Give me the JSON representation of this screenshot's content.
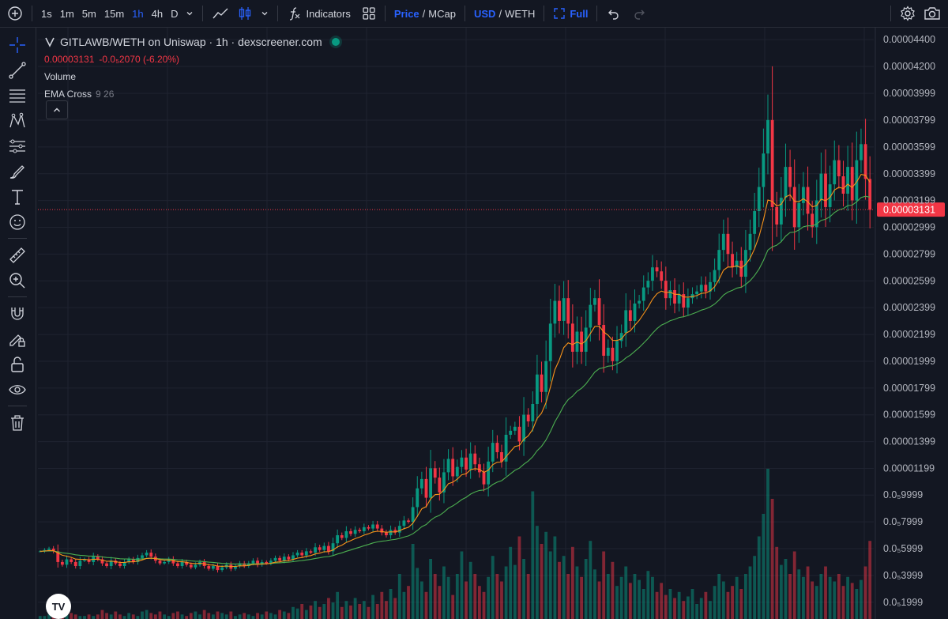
{
  "toolbar": {
    "timeframes": [
      "1s",
      "1m",
      "5m",
      "15m",
      "1h",
      "4h",
      "D"
    ],
    "active_timeframe": "1h",
    "indicators_label": "Indicators",
    "price_label": "Price",
    "mcap_label": "MCap",
    "usd_label": "USD",
    "weth_label": "WETH",
    "full_label": "Full",
    "separator": "/"
  },
  "legend": {
    "pair_title": "GITLAWB/WETH on Uniswap · 1h · dexscreener.com",
    "last_price": "0.00003131",
    "change": "-0.0₅2070 (-6.20%)",
    "volume_label": "Volume",
    "ema_label": "EMA Cross",
    "ema_params": "9 26"
  },
  "logo_text": "TV",
  "colors": {
    "background": "#131722",
    "up": "#089981",
    "down": "#f23645",
    "ema_fast": "#f7931a",
    "ema_slow": "#4caf50",
    "accent": "#2962ff"
  },
  "icons": {
    "sidebar": [
      "crosshair-icon",
      "trend-line-icon",
      "horizontal-lines-icon",
      "pattern-icon",
      "fib-icon",
      "brush-icon",
      "text-icon",
      "emoji-icon",
      "ruler-icon",
      "zoom-in-icon",
      "magnet-icon",
      "lock-drawing-icon",
      "unlock-icon",
      "eye-icon",
      "trash-icon"
    ]
  },
  "chart_data": {
    "type": "candlestick",
    "title": "GITLAWB/WETH on Uniswap · 1h · dexscreener.com",
    "y_ticks": [
      "0.00004400",
      "0.00004200",
      "0.00003999",
      "0.00003799",
      "0.00003599",
      "0.00003399",
      "0.00003199",
      "0.00002999",
      "0.00002799",
      "0.00002599",
      "0.00002399",
      "0.00002199",
      "0.00001999",
      "0.00001799",
      "0.00001599",
      "0.00001399",
      "0.00001199",
      "0.0₅9999",
      "0.0₅7999",
      "0.0₅5999",
      "0.0₅3999",
      "0.0₅1999"
    ],
    "y_tick_values": [
      4.4e-05,
      4.2e-05,
      3.999e-05,
      3.799e-05,
      3.599e-05,
      3.399e-05,
      3.199e-05,
      2.999e-05,
      2.799e-05,
      2.599e-05,
      2.399e-05,
      2.199e-05,
      1.999e-05,
      1.799e-05,
      1.599e-05,
      1.399e-05,
      1.199e-05,
      9.999e-06,
      7.999e-06,
      5.999e-06,
      3.999e-06,
      1.999e-06
    ],
    "last_price": 3.131e-05,
    "last_price_label": "0.00003131",
    "ylim": [
      1.1e-06,
      4.46e-05
    ],
    "grid": true,
    "price_series": [
      5.8e-06,
      5.9e-06,
      6e-06,
      5.8e-06,
      5e-06,
      4.8e-06,
      5.2e-06,
      5e-06,
      4.7e-06,
      5.1e-06,
      5.2e-06,
      5e-06,
      5.4e-06,
      5.2e-06,
      4.9e-06,
      4.7e-06,
      5.1e-06,
      4.9e-06,
      4.7e-06,
      5e-06,
      5.2e-06,
      5e-06,
      5.3e-06,
      5.5e-06,
      5.7e-06,
      5.4e-06,
      5.1e-06,
      4.9e-06,
      5e-06,
      5.2e-06,
      4.9e-06,
      4.7e-06,
      5e-06,
      4.8e-06,
      4.6e-06,
      4.8e-06,
      5e-06,
      4.7e-06,
      4.5e-06,
      4.7e-06,
      4.4e-06,
      4.6e-06,
      4.8e-06,
      4.5e-06,
      4.7e-06,
      4.9e-06,
      4.7e-06,
      4.9e-06,
      5.1e-06,
      4.8e-06,
      5e-06,
      4.9e-06,
      5.1e-06,
      5.3e-06,
      5.1e-06,
      5.4e-06,
      5.2e-06,
      5.5e-06,
      5.7e-06,
      5.5e-06,
      5.8e-06,
      5.7e-06,
      6.1e-06,
      5.9e-06,
      6.2e-06,
      5.8e-06,
      6.4e-06,
      7e-06,
      6.8e-06,
      7.3e-06,
      7.1e-06,
      7.4e-06,
      7.3e-06,
      7.6e-06,
      7.5e-06,
      7.8e-06,
      7.5e-06,
      7.2e-06,
      7e-06,
      7.4e-06,
      7.2e-06,
      7.7e-06,
      8.1e-06,
      8e-06,
      9.1e-06,
      1.05e-05,
      1.12e-05,
      9.8e-06,
      1.2e-05,
      1.13e-05,
      1.02e-05,
      1.17e-05,
      1.27e-05,
      1.14e-05,
      1.21e-05,
      1.28e-05,
      1.19e-05,
      1.31e-05,
      1.23e-05,
      1.17e-05,
      1.08e-05,
      1.25e-05,
      1.39e-05,
      1.32e-05,
      1.25e-05,
      1.45e-05,
      1.48e-05,
      1.51e-05,
      1.4e-05,
      1.6e-05,
      1.55e-05,
      1.68e-05,
      1.9e-05,
      1.77e-05,
      2e-05,
      2.28e-05,
      2.45e-05,
      2.3e-05,
      2.47e-05,
      2.28e-05,
      2.07e-05,
      2.22e-05,
      2.07e-05,
      2.25e-05,
      2.42e-05,
      2.47e-05,
      2.27e-05,
      2.04e-05,
      2.1e-05,
      2e-05,
      2.15e-05,
      2.21e-05,
      2.38e-05,
      2.3e-05,
      2.43e-05,
      2.45e-05,
      2.55e-05,
      2.6e-05,
      2.7e-05,
      2.67e-05,
      2.6e-05,
      2.47e-05,
      2.53e-05,
      2.43e-05,
      2.5e-05,
      2.4e-05,
      2.47e-05,
      2.5e-05,
      2.52e-05,
      2.57e-05,
      2.52e-05,
      2.59e-05,
      2.68e-05,
      2.83e-05,
      2.95e-05,
      2.8e-05,
      2.7e-05,
      2.75e-05,
      2.63e-05,
      2.83e-05,
      2.95e-05,
      3.12e-05,
      3.3e-05,
      3.55e-05,
      3.8e-05,
      3.15e-05,
      3.02e-05,
      3.22e-05,
      3.45e-05,
      3.3e-05,
      3e-05,
      3.18e-05,
      3.3e-05,
      3.1e-05,
      3e-05,
      3.2e-05,
      3.4e-05,
      3.15e-05,
      3.32e-05,
      3.5e-05,
      3.38e-05,
      3.25e-05,
      3.45e-05,
      3.2e-05,
      3.5e-05,
      3.62e-05,
      3.36e-05,
      3.13e-05
    ],
    "volume_max_label": "",
    "volume_series": [
      0.02,
      0.02,
      0.03,
      0.02,
      0.05,
      0.06,
      0.03,
      0.04,
      0.03,
      0.02,
      0.02,
      0.03,
      0.02,
      0.03,
      0.06,
      0.04,
      0.03,
      0.05,
      0.03,
      0.02,
      0.04,
      0.03,
      0.02,
      0.05,
      0.06,
      0.04,
      0.03,
      0.05,
      0.03,
      0.02,
      0.04,
      0.05,
      0.03,
      0.02,
      0.04,
      0.05,
      0.03,
      0.06,
      0.04,
      0.03,
      0.05,
      0.04,
      0.03,
      0.05,
      0.02,
      0.03,
      0.04,
      0.03,
      0.02,
      0.04,
      0.03,
      0.05,
      0.04,
      0.03,
      0.06,
      0.05,
      0.04,
      0.08,
      0.07,
      0.1,
      0.06,
      0.09,
      0.12,
      0.08,
      0.1,
      0.14,
      0.11,
      0.18,
      0.08,
      0.12,
      0.09,
      0.14,
      0.1,
      0.12,
      0.08,
      0.16,
      0.1,
      0.18,
      0.12,
      0.2,
      0.14,
      0.3,
      0.18,
      0.22,
      0.5,
      0.34,
      0.25,
      0.18,
      0.4,
      0.3,
      0.22,
      0.35,
      0.28,
      0.16,
      0.3,
      0.45,
      0.25,
      0.38,
      0.3,
      0.22,
      0.18,
      0.28,
      0.42,
      0.3,
      0.25,
      0.35,
      0.48,
      0.36,
      0.55,
      0.4,
      0.3,
      0.85,
      0.62,
      0.5,
      0.58,
      0.45,
      0.55,
      0.38,
      0.42,
      0.3,
      0.48,
      0.35,
      0.28,
      0.4,
      0.52,
      0.33,
      0.25,
      0.45,
      0.3,
      0.38,
      0.22,
      0.28,
      0.35,
      0.24,
      0.3,
      0.26,
      0.2,
      0.32,
      0.28,
      0.18,
      0.24,
      0.16,
      0.2,
      0.14,
      0.18,
      0.12,
      0.15,
      0.2,
      0.1,
      0.14,
      0.18,
      0.12,
      0.22,
      0.3,
      0.25,
      0.18,
      0.22,
      0.28,
      0.2,
      0.3,
      0.35,
      0.42,
      0.55,
      0.7,
      1.0,
      0.8,
      0.48,
      0.36,
      0.4,
      0.3,
      0.45,
      0.33,
      0.28,
      0.35,
      0.25,
      0.22,
      0.3,
      0.35,
      0.28,
      0.25,
      0.3,
      0.22,
      0.28,
      0.24,
      0.2,
      0.26,
      0.35,
      0.52
    ]
  }
}
